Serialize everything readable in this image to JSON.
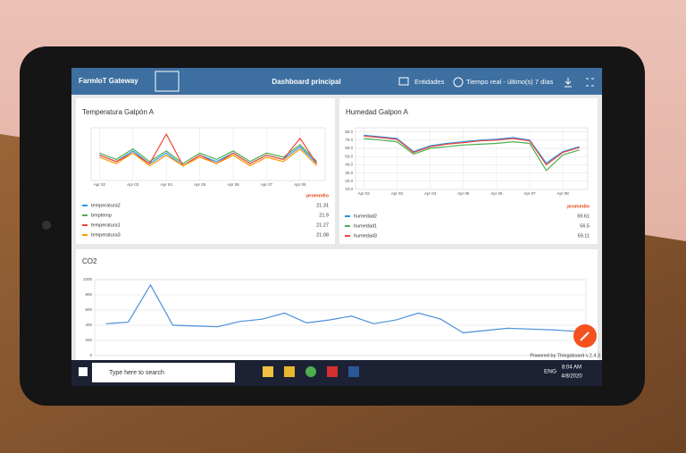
{
  "header": {
    "brand": "FarmIoT Gateway",
    "title": "Dashboard principal",
    "entities": "Entidades",
    "timewindow": "Tiempo real - último(s) 7 días"
  },
  "chart_data": [
    {
      "type": "line",
      "title": "Temperatura Galpón A",
      "legend_header": "promedio",
      "categories": [
        "Apr 02",
        null,
        "Apr 03",
        null,
        "Apr 04",
        null,
        "Apr 05",
        null,
        "Apr 06",
        null,
        "Apr 07",
        null,
        "Apr 08",
        null
      ],
      "ylim": [
        10,
        35
      ],
      "series": [
        {
          "name": "temperatura2",
          "color": "#2196f3",
          "average": 21.31,
          "values": [
            22,
            19,
            24,
            18,
            23,
            17,
            22,
            19,
            23,
            18,
            22,
            20,
            26,
            18
          ]
        },
        {
          "name": "bmptemp",
          "color": "#4caf50",
          "average": 21.9,
          "values": [
            23,
            20,
            25,
            19,
            24,
            18,
            23,
            20,
            24,
            19,
            23,
            21,
            27,
            19
          ]
        },
        {
          "name": "temperatura1",
          "color": "#f44336",
          "average": 21.27,
          "values": [
            22,
            19,
            23,
            18,
            32,
            17,
            22,
            18,
            23,
            18,
            22,
            20,
            30,
            18
          ]
        },
        {
          "name": "temperatura3",
          "color": "#ff9800",
          "average": 21.08,
          "values": [
            21,
            18,
            23,
            17,
            22,
            17,
            21,
            18,
            22,
            17,
            21,
            19,
            25,
            17
          ]
        }
      ]
    },
    {
      "type": "line",
      "title": "Humedad Galpon A",
      "legend_header": "promedio",
      "categories": [
        "Apr 02",
        null,
        "Apr 03",
        null,
        "Apr 04",
        null,
        "Apr 05",
        null,
        "Apr 06",
        null,
        "Apr 07",
        null,
        "Apr 08",
        null
      ],
      "ylim": [
        10,
        85
      ],
      "yticks": [
        {
          "value": 10,
          "label": "10.0"
        },
        {
          "value": 20,
          "label": "20.0"
        },
        {
          "value": 30,
          "label": "30.0"
        },
        {
          "value": 40,
          "label": "40.0"
        },
        {
          "value": 50,
          "label": "50.0"
        },
        {
          "value": 60,
          "label": "60.0"
        },
        {
          "value": 70,
          "label": "70.0"
        },
        {
          "value": 80,
          "label": "80.0"
        }
      ],
      "series": [
        {
          "name": "humedad2",
          "color": "#2196f3",
          "average": 59.61,
          "values": [
            76,
            74,
            72,
            56,
            63,
            66,
            68,
            70,
            71,
            73,
            70,
            42,
            56,
            62
          ]
        },
        {
          "name": "humedad1",
          "color": "#4caf50",
          "average": 56.5,
          "values": [
            72,
            70,
            68,
            53,
            60,
            62,
            64,
            65,
            66,
            68,
            66,
            33,
            52,
            58
          ]
        },
        {
          "name": "humedad3",
          "color": "#f44336",
          "average": 59.11,
          "values": [
            75,
            73,
            71,
            55,
            62,
            65,
            67,
            69,
            70,
            72,
            69,
            40,
            55,
            61
          ]
        }
      ]
    },
    {
      "type": "line",
      "title": "CO2",
      "ylim": [
        0,
        1000
      ],
      "yticks": [
        0,
        200,
        400,
        600,
        800,
        1000
      ],
      "series": [
        {
          "name": null,
          "color": "#4a90d9",
          "values": [
            420,
            440,
            930,
            400,
            390,
            380,
            450,
            480,
            560,
            430,
            470,
            520,
            420,
            470,
            560,
            480,
            300,
            330,
            360,
            350,
            340,
            320
          ]
        }
      ]
    }
  ],
  "footer": "Powered by Thingsboard v.2.4.3",
  "taskbar": {
    "search": "Type here to search",
    "language": "ENG",
    "time": "8:04 AM",
    "date": "4/8/2020"
  }
}
